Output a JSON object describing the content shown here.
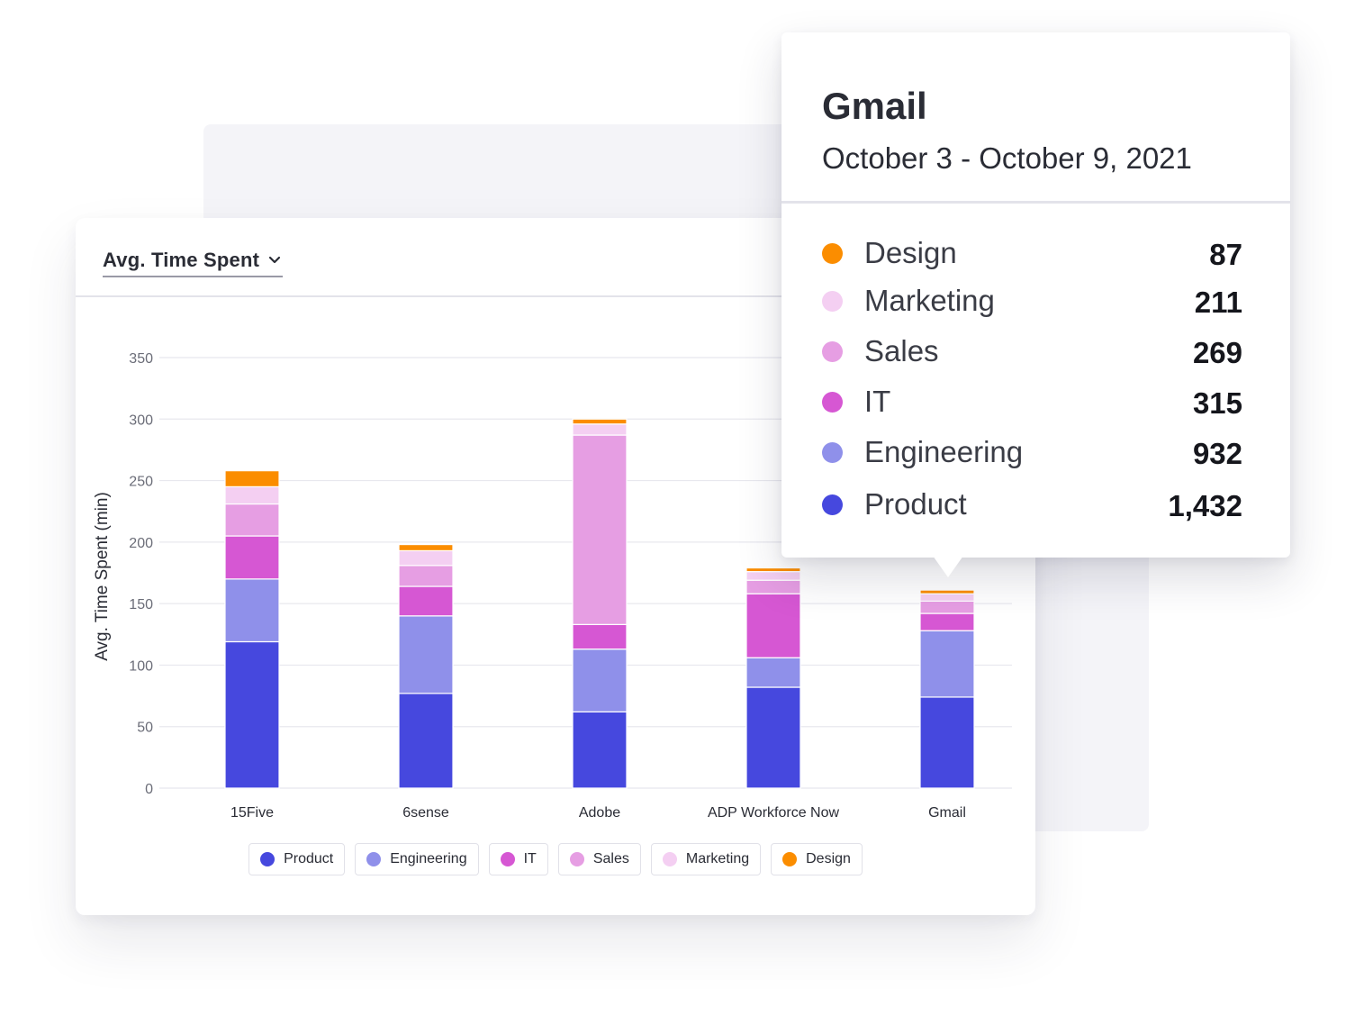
{
  "metric_selector": {
    "label": "Avg. Time Spent"
  },
  "colors": {
    "Product": "#4648de",
    "Engineering": "#8f90ea",
    "IT": "#d657d3",
    "Sales": "#e69ee3",
    "Marketing": "#f4cff2",
    "Design": "#fb8d00"
  },
  "chart_data": {
    "type": "bar",
    "stacked": true,
    "ylabel": "Avg. Time Spent (min)",
    "ylim": [
      0,
      350
    ],
    "yticks": [
      0,
      50,
      100,
      150,
      200,
      250,
      300,
      350
    ],
    "grid": true,
    "legend_position": "bottom",
    "categories": [
      "15Five",
      "6sense",
      "Adobe",
      "ADP Workforce Now",
      "Gmail"
    ],
    "series": [
      {
        "name": "Product",
        "values": [
          119,
          77,
          62,
          82,
          74
        ]
      },
      {
        "name": "Engineering",
        "values": [
          51,
          63,
          51,
          24,
          54
        ]
      },
      {
        "name": "IT",
        "values": [
          35,
          24,
          20,
          52,
          14
        ]
      },
      {
        "name": "Sales",
        "values": [
          26,
          17,
          154,
          11,
          10
        ]
      },
      {
        "name": "Marketing",
        "values": [
          14,
          12,
          9,
          7,
          6
        ]
      },
      {
        "name": "Design",
        "values": [
          13,
          5,
          4,
          3,
          3
        ]
      }
    ]
  },
  "tooltip": {
    "title": "Gmail",
    "date_range": "October 3 - October 9, 2021",
    "rows": [
      {
        "name": "Design",
        "value": "87"
      },
      {
        "name": "Marketing",
        "value": "211"
      },
      {
        "name": "Sales",
        "value": "269"
      },
      {
        "name": "IT",
        "value": "315"
      },
      {
        "name": "Engineering",
        "value": "932"
      },
      {
        "name": "Product",
        "value": "1,432"
      }
    ]
  }
}
